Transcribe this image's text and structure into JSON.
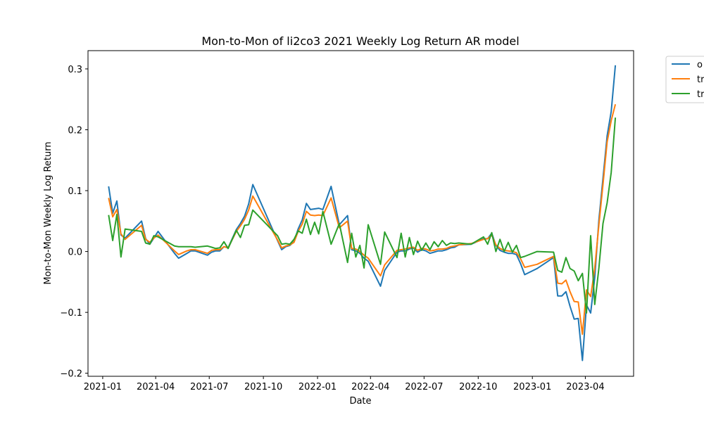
{
  "chart_data": {
    "type": "line",
    "title": "Mon-to-Mon of li2co3 2021 Weekly Log Return AR model",
    "xlabel": "Date",
    "ylabel": "Mon-to-Mon Weekly Log Return",
    "xlim": [
      "2020-12-07",
      "2023-06-22"
    ],
    "ylim": [
      -0.205,
      0.33
    ],
    "x_ticks": [
      "2021-01",
      "2021-04",
      "2021-07",
      "2021-10",
      "2022-01",
      "2022-04",
      "2022-07",
      "2022-10",
      "2023-01",
      "2023-04"
    ],
    "y_ticks": [
      "0.3",
      "0.2",
      "0.1",
      "0.0",
      "−0.1",
      "−0.2"
    ],
    "y_tick_values": [
      0.3,
      0.2,
      0.1,
      0.0,
      -0.1,
      -0.2
    ],
    "grid": false,
    "legend_position": "outside top-right",
    "legend_labels": [
      "o",
      "tr",
      "tr"
    ],
    "colors": [
      "#1f77b4",
      "#ff7f0e",
      "#2ca02c"
    ],
    "x": [
      "2021-01-11",
      "2021-01-18",
      "2021-01-25",
      "2021-02-01",
      "2021-02-08",
      "2021-03-08",
      "2021-03-15",
      "2021-03-22",
      "2021-03-29",
      "2021-04-05",
      "2021-05-03",
      "2021-05-10",
      "2021-05-24",
      "2021-05-31",
      "2021-06-07",
      "2021-06-28",
      "2021-07-05",
      "2021-07-12",
      "2021-07-19",
      "2021-07-26",
      "2021-08-02",
      "2021-08-16",
      "2021-08-23",
      "2021-08-30",
      "2021-09-06",
      "2021-09-13",
      "2021-10-25",
      "2021-11-01",
      "2021-11-08",
      "2021-11-15",
      "2021-11-22",
      "2021-11-29",
      "2021-12-06",
      "2021-12-13",
      "2021-12-20",
      "2021-12-27",
      "2022-01-03",
      "2022-01-10",
      "2022-01-24",
      "2022-02-07",
      "2022-02-21",
      "2022-02-28",
      "2022-03-07",
      "2022-03-14",
      "2022-03-21",
      "2022-03-28",
      "2022-04-18",
      "2022-04-25",
      "2022-05-16",
      "2022-05-23",
      "2022-05-30",
      "2022-06-06",
      "2022-06-13",
      "2022-06-20",
      "2022-06-27",
      "2022-07-04",
      "2022-07-11",
      "2022-07-18",
      "2022-07-25",
      "2022-08-01",
      "2022-08-08",
      "2022-08-15",
      "2022-08-22",
      "2022-08-29",
      "2022-09-19",
      "2022-10-10",
      "2022-10-17",
      "2022-10-24",
      "2022-10-31",
      "2022-11-07",
      "2022-11-14",
      "2022-11-21",
      "2022-11-28",
      "2022-12-05",
      "2022-12-12",
      "2022-12-19",
      "2023-01-09",
      "2023-02-06",
      "2023-02-13",
      "2023-02-20",
      "2023-02-27",
      "2023-03-06",
      "2023-03-13",
      "2023-03-20",
      "2023-03-27",
      "2023-04-03",
      "2023-04-10",
      "2023-04-17",
      "2023-04-24",
      "2023-05-01",
      "2023-05-08",
      "2023-05-15",
      "2023-05-22"
    ],
    "series": [
      {
        "name": "o",
        "color": "#1f77b4",
        "values": [
          0.107,
          0.063,
          0.083,
          0.027,
          0.022,
          0.05,
          0.021,
          0.012,
          0.022,
          0.033,
          -0.003,
          -0.011,
          -0.003,
          0.001,
          0.001,
          -0.006,
          -0.001,
          0.001,
          0.001,
          0.008,
          0.006,
          0.036,
          0.046,
          0.058,
          0.078,
          0.11,
          0.018,
          0.003,
          0.008,
          0.01,
          0.016,
          0.037,
          0.052,
          0.079,
          0.069,
          0.07,
          0.071,
          0.069,
          0.107,
          0.044,
          0.059,
          0.003,
          0.001,
          -0.003,
          -0.011,
          -0.016,
          -0.057,
          -0.031,
          -0.001,
          0.001,
          0.001,
          0.004,
          0.006,
          -0.001,
          0.003,
          0.001,
          -0.003,
          -0.001,
          0.001,
          0.001,
          0.003,
          0.006,
          0.007,
          0.011,
          0.012,
          0.021,
          0.021,
          0.03,
          0.01,
          0.002,
          -0.001,
          -0.003,
          -0.003,
          -0.005,
          -0.02,
          -0.038,
          -0.028,
          -0.01,
          -0.073,
          -0.073,
          -0.066,
          -0.09,
          -0.111,
          -0.11,
          -0.179,
          -0.088,
          -0.101,
          -0.043,
          0.052,
          0.12,
          0.19,
          0.23,
          0.306
        ]
      },
      {
        "name": "tr",
        "color": "#ff7f0e",
        "values": [
          0.088,
          0.057,
          0.069,
          0.029,
          0.02,
          0.043,
          0.02,
          0.015,
          0.022,
          0.027,
          0.001,
          -0.005,
          0.001,
          0.003,
          0.003,
          -0.003,
          0.002,
          0.003,
          0.003,
          0.008,
          0.006,
          0.033,
          0.042,
          0.053,
          0.068,
          0.091,
          0.019,
          0.006,
          0.009,
          0.011,
          0.015,
          0.033,
          0.045,
          0.066,
          0.06,
          0.059,
          0.06,
          0.059,
          0.088,
          0.039,
          0.05,
          0.005,
          0.004,
          0.0,
          -0.006,
          -0.011,
          -0.04,
          -0.022,
          0.002,
          0.003,
          0.004,
          0.006,
          0.007,
          0.002,
          0.005,
          0.004,
          0.001,
          0.002,
          0.004,
          0.004,
          0.005,
          0.008,
          0.009,
          0.011,
          0.013,
          0.02,
          0.021,
          0.027,
          0.011,
          0.005,
          0.002,
          0.001,
          0.0,
          -0.002,
          -0.012,
          -0.026,
          -0.021,
          -0.008,
          -0.052,
          -0.053,
          -0.047,
          -0.066,
          -0.082,
          -0.083,
          -0.136,
          -0.063,
          -0.074,
          -0.028,
          0.044,
          0.11,
          0.18,
          0.215,
          0.242
        ]
      },
      {
        "name": "tr",
        "color": "#2ca02c",
        "values": [
          0.06,
          0.018,
          0.061,
          -0.009,
          0.037,
          0.033,
          0.014,
          0.012,
          0.026,
          0.024,
          0.009,
          0.008,
          0.008,
          0.008,
          0.007,
          0.009,
          0.007,
          0.005,
          0.006,
          0.016,
          0.005,
          0.035,
          0.023,
          0.043,
          0.044,
          0.068,
          0.026,
          0.012,
          0.013,
          0.012,
          0.02,
          0.034,
          0.03,
          0.053,
          0.028,
          0.048,
          0.029,
          0.066,
          0.012,
          0.046,
          -0.018,
          0.03,
          -0.009,
          0.01,
          -0.027,
          0.044,
          -0.021,
          0.032,
          -0.01,
          0.03,
          -0.009,
          0.023,
          -0.005,
          0.017,
          0.002,
          0.014,
          0.003,
          0.016,
          0.008,
          0.018,
          0.01,
          0.014,
          0.013,
          0.014,
          0.012,
          0.024,
          0.012,
          0.031,
          0.0,
          0.02,
          0.0,
          0.015,
          -0.001,
          0.01,
          -0.01,
          -0.008,
          0.0,
          -0.001,
          -0.031,
          -0.034,
          -0.01,
          -0.028,
          -0.032,
          -0.048,
          -0.036,
          -0.101,
          0.026,
          -0.087,
          -0.027,
          0.046,
          0.08,
          0.13,
          0.22
        ]
      }
    ]
  }
}
